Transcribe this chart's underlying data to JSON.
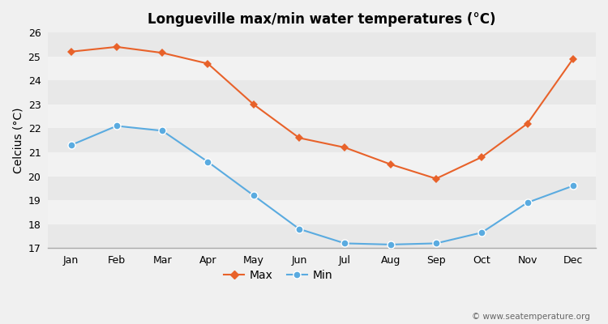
{
  "title": "Longueville max/min water temperatures (°C)",
  "ylabel": "Celcius (°C)",
  "months": [
    "Jan",
    "Feb",
    "Mar",
    "Apr",
    "May",
    "Jun",
    "Jul",
    "Aug",
    "Sep",
    "Oct",
    "Nov",
    "Dec"
  ],
  "max_values": [
    25.2,
    25.4,
    25.15,
    24.7,
    23.0,
    21.6,
    21.2,
    20.5,
    19.9,
    20.8,
    22.2,
    24.9
  ],
  "min_values": [
    21.3,
    22.1,
    21.9,
    20.6,
    19.2,
    17.8,
    17.2,
    17.15,
    17.2,
    17.65,
    18.9,
    19.6
  ],
  "max_color": "#e8622a",
  "min_color": "#5aabe0",
  "bg_color": "#f0f0f0",
  "band_colors": [
    "#e8e8e8",
    "#f2f2f2"
  ],
  "ylim": [
    17.0,
    26.0
  ],
  "yticks": [
    17,
    18,
    19,
    20,
    21,
    22,
    23,
    24,
    25,
    26
  ],
  "watermark": "© www.seatemperature.org",
  "legend_max": "Max",
  "legend_min": "Min",
  "title_fontsize": 12,
  "label_fontsize": 10,
  "tick_fontsize": 9,
  "legend_fontsize": 10
}
